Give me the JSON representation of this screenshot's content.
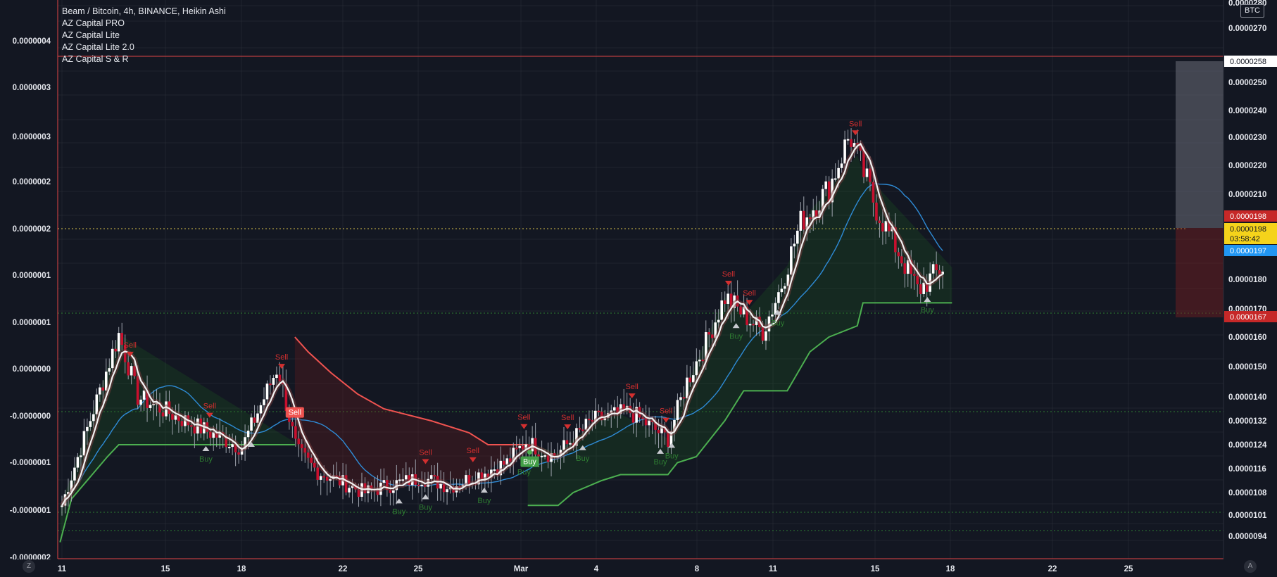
{
  "header": {
    "title": "Beam / Bitcoin, 4h, BINANCE, Heikin Ashi",
    "indicators": [
      "AZ Capital PRO",
      "AZ Capital Lite",
      "AZ Capital Lite 2.0",
      "AZ Capital S & R"
    ]
  },
  "currency_label": "BTC",
  "corner_left": "Z",
  "corner_right": "A",
  "colors": {
    "background": "#131722",
    "grid": "#2a2e39",
    "candle": "#ffffff",
    "candle_bear": "#c8102e",
    "ma_blue": "#2e8bd6",
    "trail_green": "#4caf50",
    "trail_red": "#ef5350",
    "buy": "#2e7d32",
    "sell": "#c62828"
  },
  "left_axis": {
    "labels": [
      "0.0000004",
      "0.0000003",
      "0.0000003",
      "0.0000002",
      "0.0000002",
      "0.0000001",
      "0.0000001",
      "0.0000000",
      "-0.0000000",
      "-0.0000001",
      "-0.0000001",
      "-0.0000002"
    ]
  },
  "right_axis": {
    "labels": [
      "0.0000280",
      "0.0000270",
      "0.0000250",
      "0.0000240",
      "0.0000230",
      "0.0000220",
      "0.0000210",
      "0.0000180",
      "0.0000170",
      "0.0000160",
      "0.0000150",
      "0.0000140",
      "0.0000132",
      "0.0000124",
      "0.0000116",
      "0.0000108",
      "0.0000101",
      "0.0000094"
    ]
  },
  "price_tags": {
    "top_target": "0.0000258",
    "upper_red": "0.0000198",
    "current": "0.0000198",
    "countdown": "03:58:42",
    "blue": "0.0000197",
    "lower_red": "0.0000167"
  },
  "x_axis": {
    "labels": [
      "11",
      "15",
      "18",
      "22",
      "25",
      "Mar",
      "4",
      "8",
      "11",
      "15",
      "18",
      "22",
      "25"
    ]
  },
  "chart_data": {
    "type": "candlestick",
    "title": "Beam / Bitcoin, 4h, BINANCE, Heikin Ashi",
    "xlabel": "",
    "ylabel": "",
    "x_ticks": [
      "11",
      "15",
      "18",
      "22",
      "25",
      "Mar",
      "4",
      "8",
      "11",
      "15",
      "18",
      "22",
      "25"
    ],
    "price_anchors": [
      {
        "day": 11,
        "price": 1.04e-05
      },
      {
        "day": 14,
        "price": 1.61e-05
      },
      {
        "day": 15,
        "price": 1.4e-05
      },
      {
        "day": 17.5,
        "price": 1.32e-05
      },
      {
        "day": 20.5,
        "price": 1.23e-05
      },
      {
        "day": 22.4,
        "price": 1.5e-05
      },
      {
        "day": 23.4,
        "price": 1.22e-05
      },
      {
        "day": 24.5,
        "price": 1.15e-05
      },
      {
        "day": 27,
        "price": 1.08e-05
      },
      {
        "day": 28,
        "price": 1.1e-05
      },
      {
        "day": 30,
        "price": 1.13e-05
      },
      {
        "day": 31.5,
        "price": 1.1e-05
      },
      {
        "day": 33,
        "price": 1.14e-05
      },
      {
        "day": 34.5,
        "price": 1.18e-05
      },
      {
        "day": 35.5,
        "price": 1.25e-05
      },
      {
        "day": 37,
        "price": 1.2e-05
      },
      {
        "day": 39,
        "price": 1.32e-05
      },
      {
        "day": 41,
        "price": 1.35e-05
      },
      {
        "day": 43,
        "price": 1.26e-05
      },
      {
        "day": 44,
        "price": 1.45e-05
      },
      {
        "day": 45,
        "price": 1.58e-05
      },
      {
        "day": 46,
        "price": 1.74e-05
      },
      {
        "day": 48,
        "price": 1.62e-05
      },
      {
        "day": 49,
        "price": 1.78e-05
      },
      {
        "day": 50,
        "price": 2e-05
      },
      {
        "day": 51.5,
        "price": 2.12e-05
      },
      {
        "day": 52.6,
        "price": 2.31e-05
      },
      {
        "day": 54,
        "price": 2.05e-05
      },
      {
        "day": 55.5,
        "price": 1.85e-05
      },
      {
        "day": 56.2,
        "price": 1.76e-05
      },
      {
        "day": 57.5,
        "price": 1.84e-05
      }
    ],
    "support_trail": [
      {
        "day": 10.9,
        "price": 9.2e-06
      },
      {
        "day": 11.5,
        "price": 1.06e-05
      },
      {
        "day": 13.4,
        "price": 1.2e-05
      },
      {
        "day": 14,
        "price": 1.24e-05
      },
      {
        "day": 23.3,
        "price": 1.24e-05
      },
      {
        "day": 23.3,
        "price": null
      },
      {
        "day": 35.6,
        "price": 1.04e-05
      },
      {
        "day": 37.2,
        "price": 1.04e-05
      },
      {
        "day": 38,
        "price": 1.08e-05
      },
      {
        "day": 39.5,
        "price": 1.12e-05
      },
      {
        "day": 40.5,
        "price": 1.14e-05
      },
      {
        "day": 43,
        "price": 1.14e-05
      },
      {
        "day": 43.5,
        "price": 1.18e-05
      },
      {
        "day": 44.5,
        "price": 1.2e-05
      },
      {
        "day": 46,
        "price": 1.32e-05
      },
      {
        "day": 47,
        "price": 1.42e-05
      },
      {
        "day": 49.3,
        "price": 1.42e-05
      },
      {
        "day": 50.5,
        "price": 1.55e-05
      },
      {
        "day": 51.5,
        "price": 1.6e-05
      },
      {
        "day": 53,
        "price": 1.64e-05
      },
      {
        "day": 53.3,
        "price": 1.72e-05
      },
      {
        "day": 58,
        "price": 1.72e-05
      }
    ],
    "resistance_trail": [
      {
        "day": 23.3,
        "price": 1.6e-05
      },
      {
        "day": 24,
        "price": 1.55e-05
      },
      {
        "day": 25.2,
        "price": 1.48e-05
      },
      {
        "day": 26.6,
        "price": 1.41e-05
      },
      {
        "day": 28,
        "price": 1.36e-05
      },
      {
        "day": 30.5,
        "price": 1.32e-05
      },
      {
        "day": 32.5,
        "price": 1.28e-05
      },
      {
        "day": 33.5,
        "price": 1.24e-05
      },
      {
        "day": 35.6,
        "price": 1.24e-05
      }
    ],
    "signals": [
      {
        "type": "sell",
        "day": 14.6,
        "label": "Sell"
      },
      {
        "type": "sell",
        "day": 18.8,
        "label": "Sell"
      },
      {
        "type": "buy",
        "day": 18.6,
        "label": "Buy"
      },
      {
        "type": "buy",
        "day": 21,
        "label": ""
      },
      {
        "type": "sell",
        "day": 22.6,
        "label": "Sell"
      },
      {
        "type": "sell",
        "day": 23.3,
        "label": "Sell",
        "boxed": true
      },
      {
        "type": "buy",
        "day": 28.8,
        "label": "Buy"
      },
      {
        "type": "sell",
        "day": 30.2,
        "label": "Sell"
      },
      {
        "type": "buy",
        "day": 30.2,
        "label": "Buy"
      },
      {
        "type": "sell",
        "day": 32.7,
        "label": "Sell"
      },
      {
        "type": "buy",
        "day": 33.3,
        "label": "Buy"
      },
      {
        "type": "sell",
        "day": 35.4,
        "label": "Sell"
      },
      {
        "type": "buy",
        "day": 35.4,
        "label": "Buy"
      },
      {
        "type": "buy",
        "day": 35.7,
        "label": "Buy",
        "boxed": true
      },
      {
        "type": "sell",
        "day": 37.7,
        "label": "Sell"
      },
      {
        "type": "buy",
        "day": 38.5,
        "label": "Buy"
      },
      {
        "type": "sell",
        "day": 41.1,
        "label": "Sell"
      },
      {
        "type": "sell",
        "day": 42.9,
        "label": "Sell"
      },
      {
        "type": "buy",
        "day": 42.6,
        "label": "Buy"
      },
      {
        "type": "buy",
        "day": 43.2,
        "label": "Buy"
      },
      {
        "type": "sell",
        "day": 46.2,
        "label": "Sell"
      },
      {
        "type": "buy",
        "day": 46.6,
        "label": "Buy"
      },
      {
        "type": "sell",
        "day": 47.3,
        "label": "Sell"
      },
      {
        "type": "buy",
        "day": 48.8,
        "label": "Buy"
      },
      {
        "type": "sell",
        "day": 52.9,
        "label": "Sell"
      },
      {
        "type": "buy",
        "day": 56.7,
        "label": "Buy"
      }
    ],
    "position_zone": {
      "target": 2.58e-05,
      "entry": 1.98e-05,
      "stop": 1.67e-05
    },
    "grid": true
  }
}
